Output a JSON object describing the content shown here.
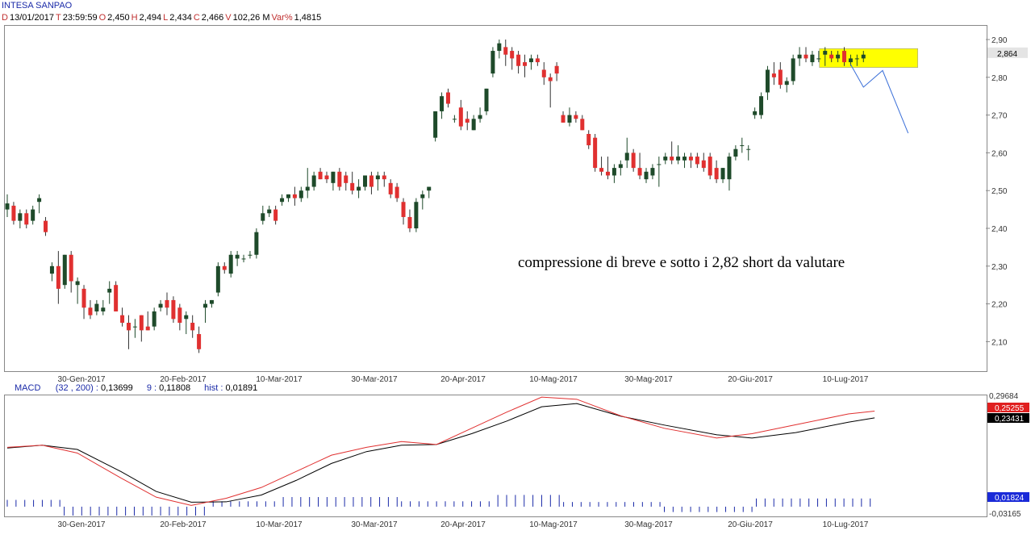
{
  "header": {
    "title": "INTESA SANPAO",
    "ohlc": [
      {
        "key": "D",
        "value": "13/01/2017"
      },
      {
        "key": "T",
        "value": "23:59:59"
      },
      {
        "key": "O",
        "value": "2,450"
      },
      {
        "key": "H",
        "value": "2,494"
      },
      {
        "key": "L",
        "value": "2,434"
      },
      {
        "key": "C",
        "value": "2,466"
      },
      {
        "key": "V",
        "value": "102,26 M"
      },
      {
        "key": "Var%",
        "value": "1,4815"
      }
    ]
  },
  "macd_header": {
    "name": "MACD",
    "params": "(32 , 200) :",
    "macd_value": "0,13699",
    "signal_label": "9 :",
    "signal_value": "0,11808",
    "hist_label": "hist :",
    "hist_value": "0,01891"
  },
  "colors": {
    "up": "#1e4a2a",
    "down": "#e03030",
    "highlight": "#ffff00",
    "projection": "#3a6fd8",
    "macd_line": "#000000",
    "signal_line": "#e03030",
    "hist": "#1a2aa8"
  },
  "chart_data": [
    {
      "type": "candlestick",
      "title": "INTESA SANPAO",
      "ylim": [
        2.06,
        2.92
      ],
      "y_ticks": [
        "2,90",
        "2,80",
        "2,70",
        "2,60",
        "2,50",
        "2,40",
        "2,30",
        "2,20",
        "2,10"
      ],
      "x_labels": [
        "30-Gen-2017",
        "20-Feb-2017",
        "10-Mar-2017",
        "30-Mar-2017",
        "20-Apr-2017",
        "10-Mag-2017",
        "30-Mag-2017",
        "20-Giu-2017",
        "10-Lug-2017"
      ],
      "last_price": "2,864",
      "candles": [
        [
          2.45,
          2.49,
          2.43,
          2.466
        ],
        [
          2.46,
          2.47,
          2.41,
          2.42
        ],
        [
          2.42,
          2.45,
          2.4,
          2.44
        ],
        [
          2.44,
          2.45,
          2.4,
          2.41
        ],
        [
          2.42,
          2.46,
          2.41,
          2.45
        ],
        [
          2.47,
          2.49,
          2.44,
          2.48
        ],
        [
          2.42,
          2.43,
          2.38,
          2.39
        ],
        [
          2.28,
          2.31,
          2.26,
          2.3
        ],
        [
          2.3,
          2.34,
          2.2,
          2.24
        ],
        [
          2.25,
          2.33,
          2.24,
          2.33
        ],
        [
          2.33,
          2.34,
          2.23,
          2.26
        ],
        [
          2.25,
          2.27,
          2.2,
          2.26
        ],
        [
          2.24,
          2.25,
          2.16,
          2.19
        ],
        [
          2.19,
          2.21,
          2.16,
          2.17
        ],
        [
          2.18,
          2.21,
          2.17,
          2.2
        ],
        [
          2.18,
          2.21,
          2.17,
          2.19
        ],
        [
          2.23,
          2.26,
          2.2,
          2.24
        ],
        [
          2.25,
          2.26,
          2.18,
          2.18
        ],
        [
          2.17,
          2.19,
          2.14,
          2.15
        ],
        [
          2.15,
          2.17,
          2.08,
          2.13
        ],
        [
          2.14,
          2.16,
          2.11,
          2.14
        ],
        [
          2.17,
          2.17,
          2.1,
          2.13
        ],
        [
          2.14,
          2.18,
          2.13,
          2.13
        ],
        [
          2.14,
          2.19,
          2.13,
          2.18
        ],
        [
          2.19,
          2.21,
          2.18,
          2.2
        ],
        [
          2.21,
          2.23,
          2.17,
          2.19
        ],
        [
          2.21,
          2.22,
          2.15,
          2.16
        ],
        [
          2.19,
          2.2,
          2.13,
          2.15
        ],
        [
          2.16,
          2.18,
          2.12,
          2.17
        ],
        [
          2.15,
          2.17,
          2.11,
          2.13
        ],
        [
          2.12,
          2.14,
          2.07,
          2.08
        ],
        [
          2.19,
          2.21,
          2.15,
          2.2
        ],
        [
          2.2,
          2.21,
          2.19,
          2.21
        ],
        [
          2.23,
          2.31,
          2.22,
          2.3
        ],
        [
          2.3,
          2.31,
          2.28,
          2.29
        ],
        [
          2.28,
          2.34,
          2.27,
          2.33
        ],
        [
          2.32,
          2.34,
          2.3,
          2.33
        ],
        [
          2.32,
          2.33,
          2.31,
          2.32
        ],
        [
          2.33,
          2.34,
          2.32,
          2.33
        ],
        [
          2.33,
          2.4,
          2.32,
          2.39
        ],
        [
          2.42,
          2.46,
          2.41,
          2.44
        ],
        [
          2.44,
          2.46,
          2.43,
          2.45
        ],
        [
          2.45,
          2.46,
          2.41,
          2.42
        ],
        [
          2.47,
          2.49,
          2.46,
          2.48
        ],
        [
          2.48,
          2.49,
          2.47,
          2.49
        ],
        [
          2.49,
          2.51,
          2.46,
          2.48
        ],
        [
          2.48,
          2.51,
          2.47,
          2.5
        ],
        [
          2.5,
          2.56,
          2.48,
          2.51
        ],
        [
          2.51,
          2.55,
          2.5,
          2.54
        ],
        [
          2.55,
          2.56,
          2.53,
          2.53
        ],
        [
          2.54,
          2.55,
          2.52,
          2.53
        ],
        [
          2.52,
          2.55,
          2.5,
          2.55
        ],
        [
          2.55,
          2.56,
          2.5,
          2.51
        ],
        [
          2.54,
          2.55,
          2.5,
          2.52
        ],
        [
          2.52,
          2.55,
          2.49,
          2.5
        ],
        [
          2.5,
          2.53,
          2.48,
          2.51
        ],
        [
          2.51,
          2.54,
          2.5,
          2.54
        ],
        [
          2.54,
          2.55,
          2.49,
          2.51
        ],
        [
          2.53,
          2.55,
          2.5,
          2.54
        ],
        [
          2.54,
          2.55,
          2.51,
          2.53
        ],
        [
          2.52,
          2.53,
          2.48,
          2.49
        ],
        [
          2.51,
          2.52,
          2.47,
          2.48
        ],
        [
          2.47,
          2.48,
          2.41,
          2.43
        ],
        [
          2.43,
          2.45,
          2.39,
          2.4
        ],
        [
          2.4,
          2.48,
          2.39,
          2.47
        ],
        [
          2.48,
          2.5,
          2.45,
          2.49
        ],
        [
          2.5,
          2.51,
          2.48,
          2.51
        ],
        [
          2.64,
          2.71,
          2.63,
          2.71
        ],
        [
          2.71,
          2.76,
          2.69,
          2.75
        ],
        [
          2.76,
          2.77,
          2.72,
          2.73
        ],
        [
          2.69,
          2.7,
          2.68,
          2.69
        ],
        [
          2.72,
          2.74,
          2.66,
          2.67
        ],
        [
          2.69,
          2.71,
          2.66,
          2.68
        ],
        [
          2.66,
          2.7,
          2.66,
          2.69
        ],
        [
          2.69,
          2.72,
          2.68,
          2.7
        ],
        [
          2.71,
          2.77,
          2.7,
          2.77
        ],
        [
          2.81,
          2.88,
          2.8,
          2.87
        ],
        [
          2.87,
          2.9,
          2.85,
          2.89
        ],
        [
          2.88,
          2.9,
          2.83,
          2.86
        ],
        [
          2.87,
          2.88,
          2.82,
          2.85
        ],
        [
          2.86,
          2.87,
          2.81,
          2.83
        ],
        [
          2.84,
          2.86,
          2.8,
          2.83
        ],
        [
          2.84,
          2.86,
          2.82,
          2.85
        ],
        [
          2.85,
          2.86,
          2.83,
          2.84
        ],
        [
          2.82,
          2.84,
          2.78,
          2.8
        ],
        [
          2.8,
          2.81,
          2.72,
          2.79
        ],
        [
          2.83,
          2.84,
          2.79,
          2.81
        ],
        [
          2.7,
          2.71,
          2.68,
          2.68
        ],
        [
          2.68,
          2.72,
          2.67,
          2.7
        ],
        [
          2.7,
          2.71,
          2.68,
          2.69
        ],
        [
          2.69,
          2.7,
          2.66,
          2.66
        ],
        [
          2.65,
          2.66,
          2.61,
          2.62
        ],
        [
          2.64,
          2.65,
          2.55,
          2.56
        ],
        [
          2.56,
          2.59,
          2.54,
          2.55
        ],
        [
          2.55,
          2.59,
          2.53,
          2.54
        ],
        [
          2.54,
          2.57,
          2.52,
          2.56
        ],
        [
          2.56,
          2.58,
          2.54,
          2.57
        ],
        [
          2.58,
          2.64,
          2.56,
          2.6
        ],
        [
          2.6,
          2.61,
          2.55,
          2.56
        ],
        [
          2.56,
          2.6,
          2.53,
          2.54
        ],
        [
          2.53,
          2.56,
          2.52,
          2.55
        ],
        [
          2.54,
          2.57,
          2.53,
          2.56
        ],
        [
          2.57,
          2.59,
          2.51,
          2.57
        ],
        [
          2.58,
          2.6,
          2.57,
          2.59
        ],
        [
          2.59,
          2.63,
          2.57,
          2.58
        ],
        [
          2.58,
          2.62,
          2.57,
          2.59
        ],
        [
          2.58,
          2.6,
          2.56,
          2.59
        ],
        [
          2.59,
          2.6,
          2.56,
          2.58
        ],
        [
          2.59,
          2.6,
          2.56,
          2.57
        ],
        [
          2.58,
          2.6,
          2.55,
          2.56
        ],
        [
          2.59,
          2.6,
          2.53,
          2.54
        ],
        [
          2.56,
          2.58,
          2.52,
          2.53
        ],
        [
          2.53,
          2.56,
          2.52,
          2.56
        ],
        [
          2.53,
          2.6,
          2.5,
          2.59
        ],
        [
          2.59,
          2.62,
          2.58,
          2.61
        ],
        [
          2.62,
          2.64,
          2.6,
          2.62
        ],
        [
          2.61,
          2.62,
          2.58,
          2.61
        ],
        [
          2.7,
          2.72,
          2.69,
          2.71
        ],
        [
          2.7,
          2.76,
          2.69,
          2.75
        ],
        [
          2.76,
          2.83,
          2.74,
          2.82
        ],
        [
          2.81,
          2.84,
          2.78,
          2.8
        ],
        [
          2.82,
          2.84,
          2.77,
          2.78
        ],
        [
          2.78,
          2.8,
          2.76,
          2.79
        ],
        [
          2.79,
          2.86,
          2.78,
          2.85
        ],
        [
          2.85,
          2.88,
          2.83,
          2.86
        ],
        [
          2.86,
          2.88,
          2.84,
          2.85
        ],
        [
          2.84,
          2.87,
          2.83,
          2.86
        ],
        [
          2.85,
          2.87,
          2.84,
          2.85
        ],
        [
          2.86,
          2.88,
          2.83,
          2.87
        ],
        [
          2.86,
          2.87,
          2.84,
          2.85
        ],
        [
          2.85,
          2.87,
          2.84,
          2.86
        ],
        [
          2.87,
          2.88,
          2.83,
          2.84
        ],
        [
          2.84,
          2.86,
          2.83,
          2.85
        ],
        [
          2.85,
          2.86,
          2.83,
          2.85
        ],
        [
          2.85,
          2.87,
          2.84,
          2.86
        ]
      ],
      "highlight_zone": {
        "price_low": 2.826,
        "price_high": 2.876,
        "from_index": 128,
        "to_index": 142
      },
      "projection_path": [
        [
          132,
          2.834
        ],
        [
          134,
          2.774
        ],
        [
          137,
          2.818
        ],
        [
          141,
          2.652
        ]
      ],
      "annotation": "compressione di breve e sotto i 2,82 short da valutare"
    },
    {
      "type": "line",
      "title": "MACD",
      "ylim": [
        -0.03165,
        0.29684
      ],
      "y_ticks": [
        "0,29684",
        "-0,03165"
      ],
      "x_labels": [
        "30-Gen-2017",
        "20-Feb-2017",
        "10-Mar-2017",
        "30-Mar-2017",
        "20-Apr-2017",
        "10-Mag-2017",
        "30-Mag-2017",
        "20-Giu-2017",
        "10-Lug-2017"
      ],
      "value_badges": [
        {
          "value": "0,25255",
          "series": "signal"
        },
        {
          "value": "0,23431",
          "series": "macd"
        },
        {
          "value": "0,01824",
          "series": "hist"
        }
      ],
      "series": [
        {
          "name": "MACD",
          "key": "macd",
          "points": [
            [
              0,
              0.15
            ],
            [
              8,
              0.158
            ],
            [
              16,
              0.146
            ],
            [
              26,
              0.084
            ],
            [
              34,
              0.029
            ],
            [
              42,
              -0.001
            ],
            [
              50,
              0.0
            ],
            [
              58,
              0.019
            ],
            [
              66,
              0.06
            ],
            [
              74,
              0.107
            ],
            [
              82,
              0.14
            ],
            [
              90,
              0.158
            ],
            [
              98,
              0.16
            ],
            [
              106,
              0.19
            ],
            [
              114,
              0.225
            ],
            [
              122,
              0.265
            ],
            [
              130,
              0.274
            ],
            [
              140,
              0.239
            ],
            [
              150,
              0.214
            ],
            [
              162,
              0.187
            ],
            [
              170,
              0.178
            ],
            [
              180,
              0.193
            ],
            [
              192,
              0.222
            ],
            [
              198,
              0.234
            ]
          ]
        },
        {
          "name": "Signal",
          "key": "signal",
          "points": [
            [
              0,
              0.152
            ],
            [
              8,
              0.158
            ],
            [
              16,
              0.136
            ],
            [
              26,
              0.066
            ],
            [
              34,
              0.013
            ],
            [
              42,
              -0.01
            ],
            [
              50,
              0.01
            ],
            [
              58,
              0.04
            ],
            [
              66,
              0.085
            ],
            [
              74,
              0.13
            ],
            [
              82,
              0.152
            ],
            [
              90,
              0.168
            ],
            [
              98,
              0.16
            ],
            [
              106,
              0.205
            ],
            [
              114,
              0.25
            ],
            [
              122,
              0.292
            ],
            [
              130,
              0.286
            ],
            [
              140,
              0.24
            ],
            [
              150,
              0.205
            ],
            [
              162,
              0.178
            ],
            [
              170,
              0.19
            ],
            [
              180,
              0.215
            ],
            [
              192,
              0.245
            ],
            [
              198,
              0.253
            ]
          ]
        }
      ],
      "histogram": [
        {
          "from": 0,
          "to": 12,
          "value": 0.01
        },
        {
          "from": 13,
          "to": 46,
          "value": -0.016
        },
        {
          "from": 47,
          "to": 62,
          "value": 0.006
        },
        {
          "from": 63,
          "to": 89,
          "value": 0.018
        },
        {
          "from": 90,
          "to": 111,
          "value": 0.006
        },
        {
          "from": 112,
          "to": 126,
          "value": 0.024
        },
        {
          "from": 127,
          "to": 149,
          "value": 0.004
        },
        {
          "from": 150,
          "to": 170,
          "value": -0.006
        },
        {
          "from": 171,
          "to": 198,
          "value": 0.014
        }
      ]
    }
  ]
}
